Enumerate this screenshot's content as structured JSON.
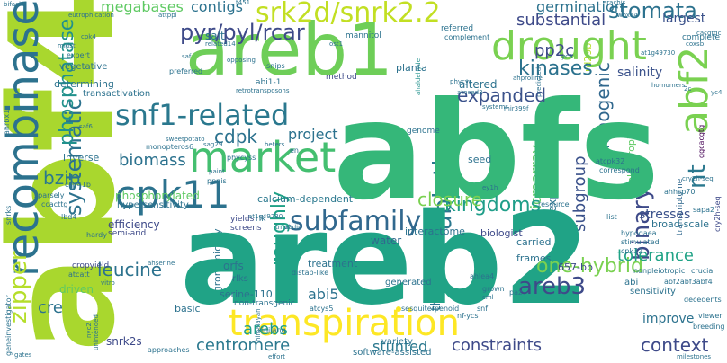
{
  "colors": {
    "background": "#ffffff",
    "palette": [
      "#440154",
      "#3e4a89",
      "#31688e",
      "#2c728e",
      "#21918c",
      "#1fa187",
      "#35b779",
      "#5ec962",
      "#7ad151",
      "#b5de2b",
      "#c2df23",
      "#fde725"
    ]
  },
  "words": {
    "abf4": "abf4",
    "abfs": "abfs",
    "areb2": "areb2",
    "areb1": "areb1",
    "drought": "drought",
    "transpiration": "transpiration",
    "recombinase": "recombinase",
    "market": "market",
    "cpk11": "cpk11",
    "snf1_related": "snf1-related",
    "srk2d_snrk2_2": "srk2d/snrk2.2",
    "pyr_pyl_rcar": "pyr/pyl/rcar",
    "abf2": "abf2",
    "subfamily": "subfamily",
    "areb3": "areb3",
    "one_hybrid": "one-hybrid",
    "binary": "binary",
    "kingdoms": "kingdoms",
    "kinases": "kinases",
    "stomata": "stomata",
    "expanded": "expanded",
    "substantial": "substantial",
    "context": "context",
    "constraints": "constraints",
    "tolerance": "tolerance",
    "closure": "closure",
    "leucine": "leucine",
    "centromere": "centromere",
    "cdpk": "cdpk",
    "bzip": "bzip",
    "biomass": "biomass",
    "arebs": "arebs",
    "cre": "cre",
    "stunted": "stunted",
    "improve": "improve",
    "megabases": "megabases",
    "contigs": "contigs",
    "germination": "germination",
    "pp2c": "pp2c",
    "salinity": "salinity",
    "abi5": "abi5",
    "project": "project",
    "stresses": "stresses",
    "largest": "largest",
    "zipper": "zipper",
    "systematic": "systematic",
    "phosphatase": "phosphatase",
    "abiotic": "abiotic",
    "roughly": "roughly",
    "monogenic": "monogenic",
    "nt": "nt",
    "subgroup": "subgroup",
    "microarray": "microarray",
    "experiment": "experiment",
    "threonine": "threonine",
    "agronomically": "agronomically",
    "pleiotropic": "pleiotropic",
    "rd29b": "rd29b",
    "transcriptome": "transcriptome",
    "cry2h_seq": "cry2h-seq",
    "ggcacgtg": "ggcacgtg",
    "ahrbx1": "ahrbx1",
    "snrks": "snrks",
    "aba_responsive": "aba-responsive",
    "ahaldehyde": "ahaldehyde",
    "predicted": "predicted",
    "genecalculator": "geneinvestigator",
    "unintended": "unintended",
    "nyc2": "nyc2",
    "himalayan": "himalayan",
    "crop_word": "cropyield",
    "cf_word": "cacggac",
    "cct_word": "cct",
    "cyt_word": "cytokinin",
    "abaa2_word": "abaa2",
    "phosphorylated": "phosphorylated",
    "hypersensitivity": "hypersensitivity",
    "water": "water",
    "efficiency": "efficiency",
    "semi_arid": "semi-arid",
    "calcium_dependent": "calcium-dependent",
    "interactome": "interactome",
    "biologist": "biologist",
    "carried": "carried",
    "frames": "frames",
    "bp657": "657-bp",
    "orfs": "orfs",
    "treatment": "treatment",
    "distab_like": "distab-like",
    "rlks": "rlks",
    "rlk": "rlk",
    "yields": "yields",
    "screens": "screens",
    "serine_110": "serine-110",
    "non_transgenic": "non-transgenic",
    "basic": "basic",
    "driven": "driven",
    "snrk2s": "snrk2s",
    "variety": "variety",
    "software_assisted": "software-assisted",
    "effort": "effort",
    "xinjiang": "xinjiang",
    "atcys5": "atcys5",
    "generated": "generated",
    "ahlea4": "ahlea4",
    "grown": "grown",
    "cml": "cml",
    "sesquiterpenoid": "sesquiterpenoid",
    "snf": "snf",
    "paz": "paz",
    "nf_ycs": "nf-ycs",
    "abi": "abi",
    "sensitivity": "sensitivity",
    "abf2abf3abf4": "abf2abf3abf4",
    "nonpleiotropic": "nonpleiotropic",
    "crucial": "crucial",
    "decedents": "decedents",
    "viewer": "viewer",
    "breeding": "breeding",
    "milestones": "milestones",
    "hypogaea": "hypogaea",
    "stimulated": "stimulated",
    "cpk32": "cpk32",
    "broad_scale": "broad-scale",
    "list": "list",
    "sapa2": "sapa2",
    "ahhsp70": "ahhsp70",
    "atcpk32": "atcpk32",
    "correspond": "correspond",
    "resource": "resource",
    "seed": "seed",
    "genome": "genome",
    "ey1h": "ey1h",
    "abf1": "abf1",
    "at1g49730": "at1g49730",
    "ahdip": "ahdip",
    "tmv2": "tmv2",
    "pppis": "pppis",
    "paint": "paint",
    "phycyss": "phycyss",
    "heters": "heters",
    "en": "en",
    "monopteros6": "monopteros6",
    "sweetpotato": "sweetpotato",
    "sag29": "sag29",
    "inverse": "inverse",
    "csp41b": "csp41b",
    "sparsely": "sparsely",
    "ccacttg": "ccacttg",
    "lbd4": "lbd4",
    "hardy": "hardy",
    "saf6": "saf6",
    "ahserine": "ahserine",
    "vitro": "vitro",
    "atcatt": "atcatt",
    "gates": "gates",
    "approaches": "approaches",
    "aafs": "aafs",
    "ahm": "ahm",
    "abi_word": "abi",
    "genome_word": "genome",
    "atmyb2": "atmyb2",
    "larsuspt": "larsuspt",
    "systems": "systems",
    "mir399f": "mir399f",
    "ahproline": "ahproline",
    "phycys": "phycys",
    "atnced3": "atnced3",
    "homomers": "homomers",
    "c2c": "2c",
    "yc4": "yc4",
    "yc9": "yc9",
    "planta": "planta",
    "altered": "altered",
    "abi1_1": "abi1-1",
    "method": "method",
    "snips": "snips",
    "retrotransposons": "retrotransposons",
    "transactivation": "transactivation",
    "determining": "determining",
    "vegetative": "vegetative",
    "opposing": "opposing",
    "preferred": "preferred",
    "salt": "salt",
    "mannitol": "mannitol",
    "referred": "referred",
    "complement": "complement",
    "eutrophication": "eutrophication",
    "attppi": "attppi",
    "t451": "t451",
    "arachis": "arachis",
    "wox14": "wox14",
    "cacgtgc": "cacgtgc",
    "complete": "complete",
    "at1g49730_2": "at1g49730",
    "coxsb": "coxsb",
    "cpk4": "cpk4",
    "midst": "midst",
    "expert": "expert",
    "related14": "related14",
    "ost1": "ost1",
    "saf": "saf",
    "bifacial": "bifacial"
  }
}
